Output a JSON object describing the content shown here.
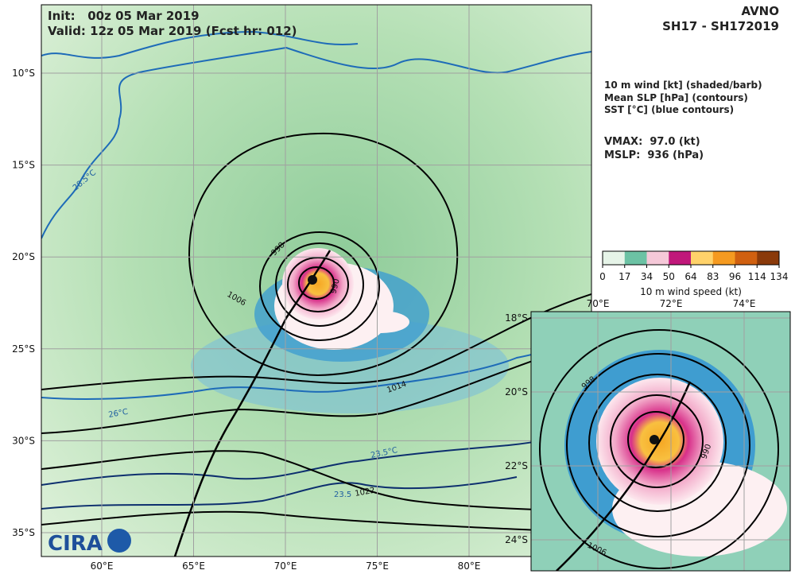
{
  "header": {
    "init": "Init:   00z 05 Mar 2019",
    "valid": "Valid: 12z 05 Mar 2019 (Fcst hr: 012)",
    "model": "AVNO",
    "storm": "SH17 - SH172019"
  },
  "legend": {
    "lines": [
      "10 m wind [kt] (shaded/barb)",
      "Mean SLP [hPa] (contours)",
      "SST [°C] (blue contours)"
    ],
    "vmax": "VMAX:  97.0 (kt)",
    "mslp": "MSLP:  936 (hPa)"
  },
  "colorbar": {
    "ticks": [
      0,
      17,
      34,
      50,
      64,
      83,
      96,
      114,
      134
    ],
    "label": "10 m wind speed (kt)"
  },
  "main_map": {
    "lat_labels": [
      "10°S",
      "15°S",
      "20°S",
      "25°S",
      "30°S",
      "35°S"
    ],
    "lon_labels": [
      "60°E",
      "65°E",
      "70°E",
      "75°E",
      "80°E"
    ],
    "contour_labels": [
      "998",
      "990",
      "1006",
      "1014",
      "1022"
    ],
    "sst_labels": [
      "28.5°C",
      "26°C",
      "23.5°C",
      "23.5"
    ]
  },
  "inset_map": {
    "lat_labels": [
      "18°S",
      "20°S",
      "22°S",
      "24°S"
    ],
    "lon_labels": [
      "70°E",
      "72°E",
      "74°E"
    ],
    "contour_labels": [
      "998",
      "990",
      "1006"
    ]
  },
  "logo": "CIRA"
}
